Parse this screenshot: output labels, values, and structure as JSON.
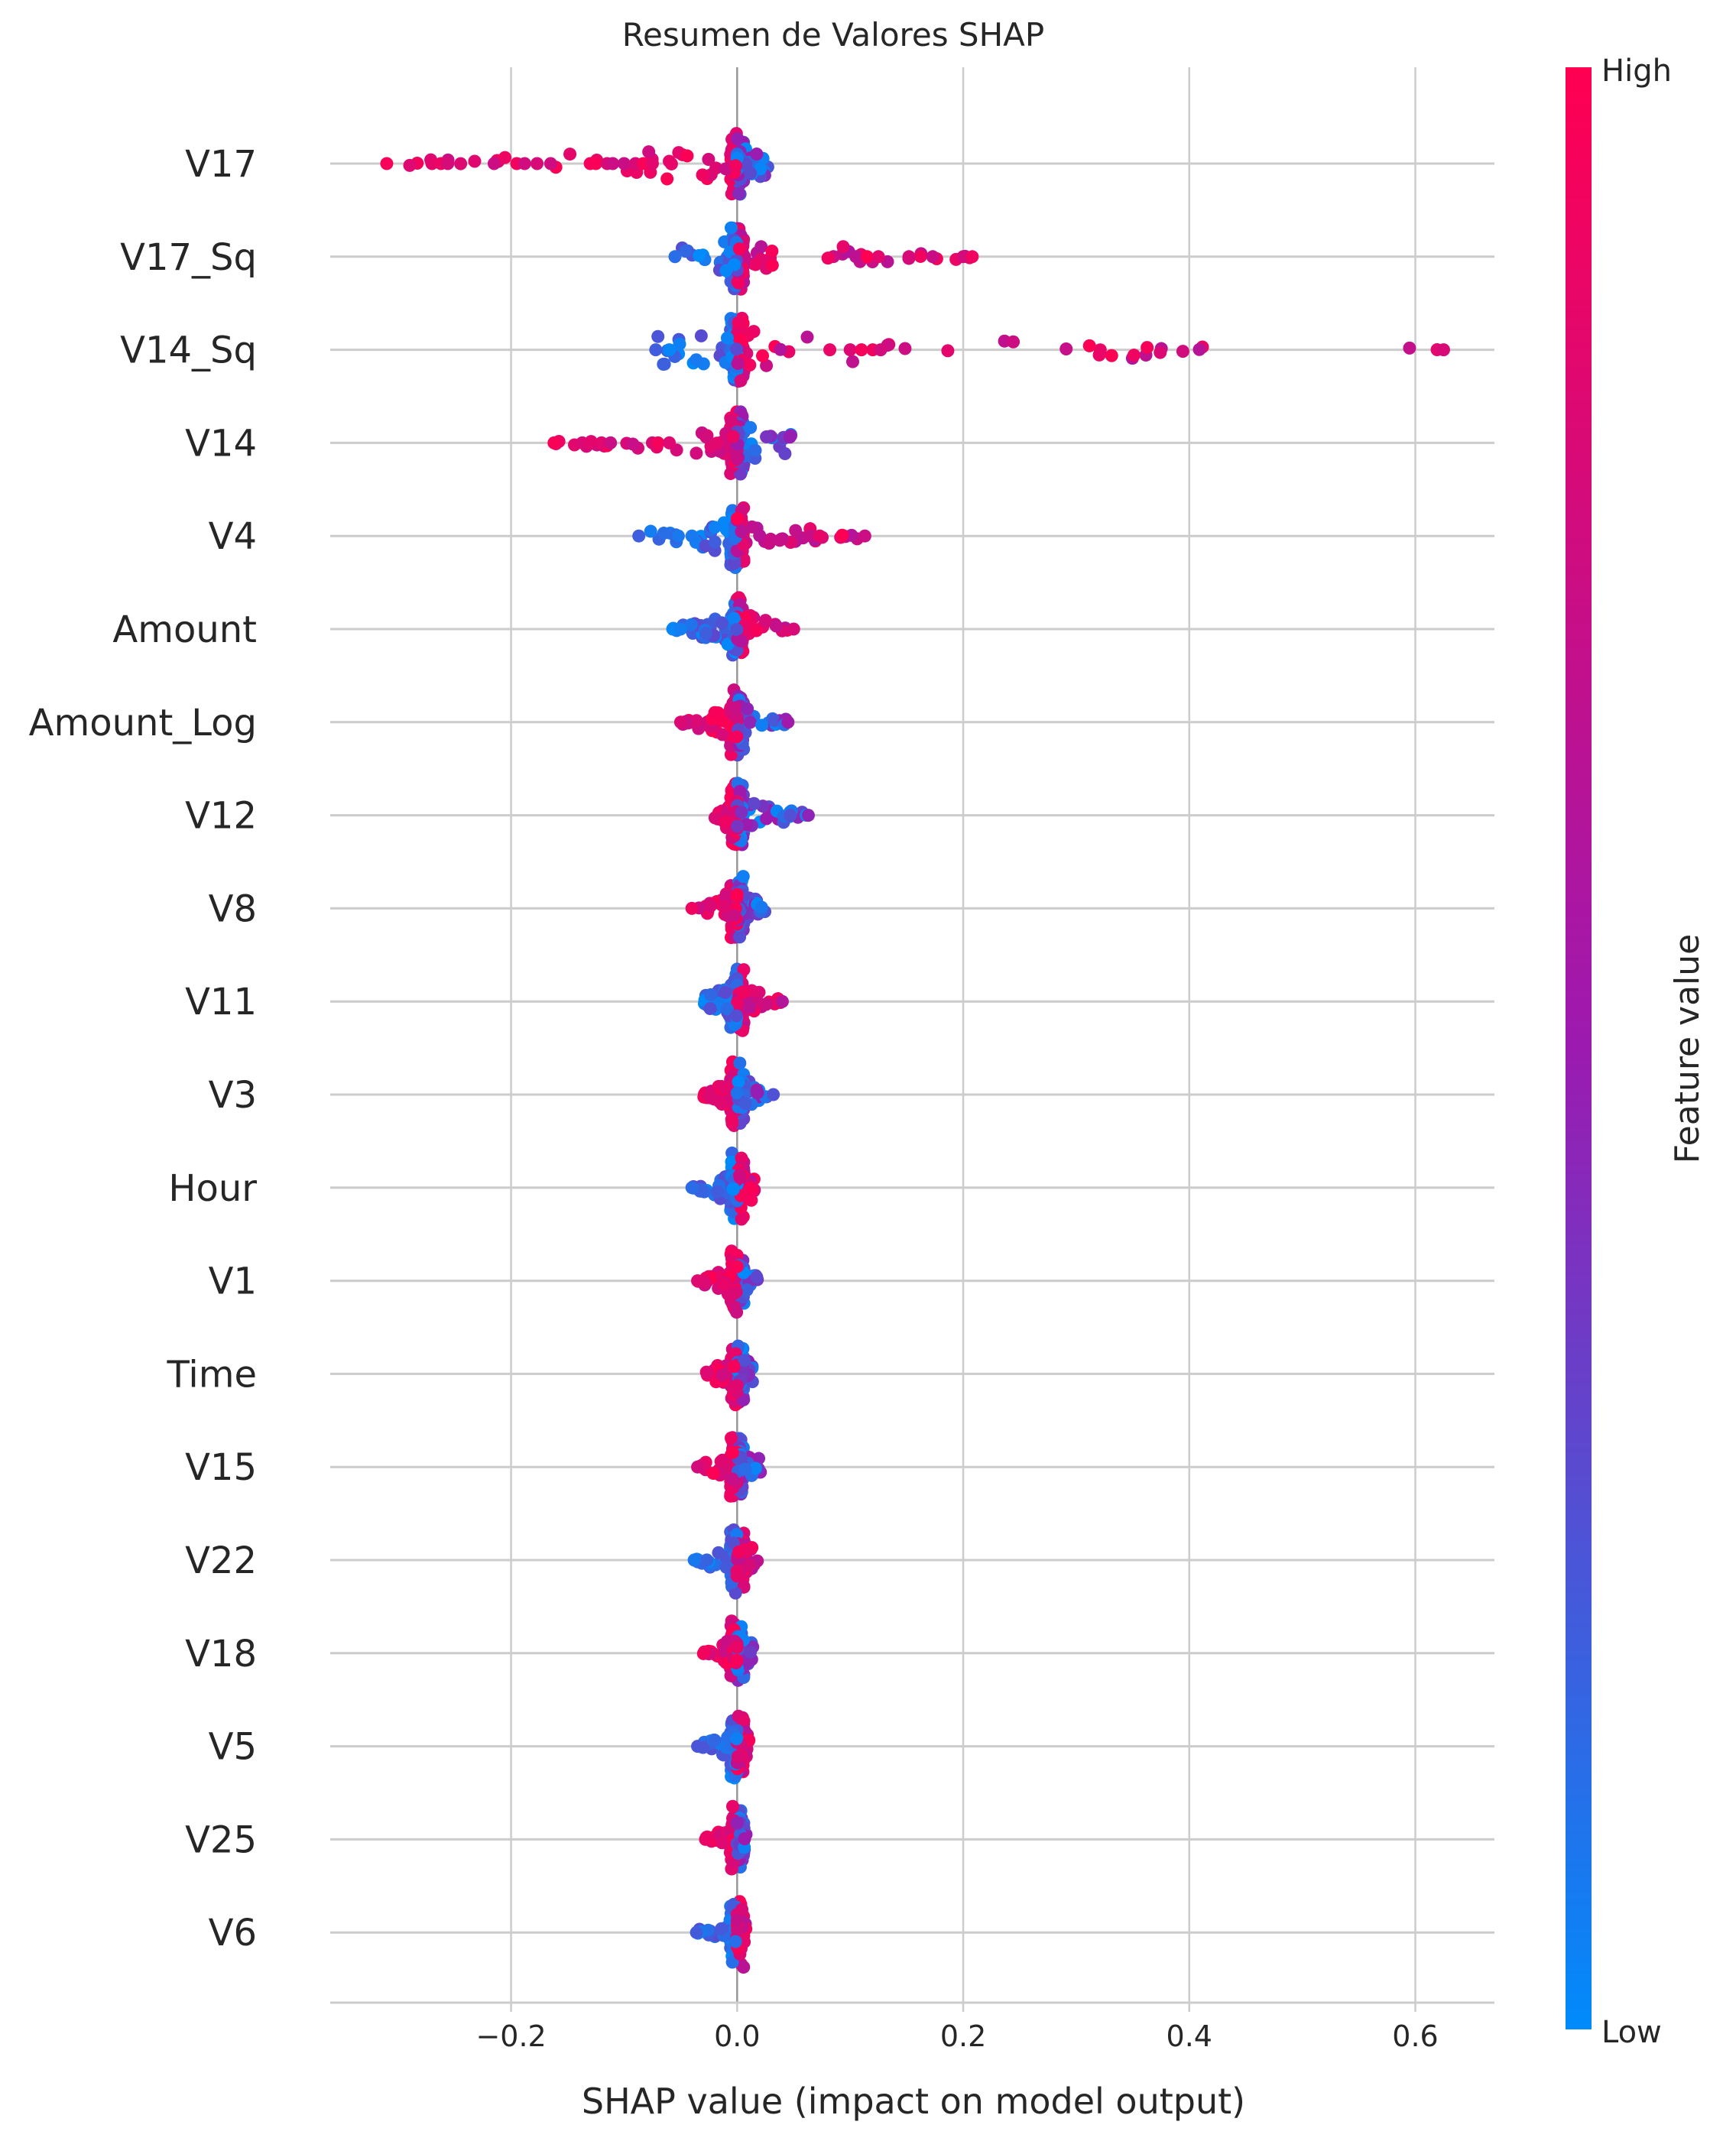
{
  "chart_data": {
    "type": "scatter",
    "variant": "shap-beeswarm",
    "title": "Resumen de Valores SHAP",
    "xlabel": "SHAP value (impact on model output)",
    "xlim": [
      -0.36,
      0.67
    ],
    "xticks": [
      -0.2,
      0.0,
      0.2,
      0.4,
      0.6
    ],
    "xtick_labels": [
      "−0.2",
      "0.0",
      "0.2",
      "0.4",
      "0.6"
    ],
    "grid": "on",
    "colorbar": {
      "label": "Feature value",
      "high_label": "High",
      "low_label": "Low",
      "low_color": "#008bfb",
      "mid_color": "#9c1ab0",
      "high_color": "#ff0052"
    },
    "features": [
      {
        "name": "V17",
        "min": -0.31,
        "max": 0.03,
        "negative_color": "high",
        "outliers": [
          -0.31,
          -0.27,
          -0.262,
          -0.256,
          -0.215,
          -0.195,
          -0.188,
          -0.177,
          -0.165,
          -0.13,
          -0.125,
          -0.115,
          -0.11,
          -0.1,
          -0.09,
          -0.083,
          -0.075
        ]
      },
      {
        "name": "V17_Sq",
        "min": -0.055,
        "max": 0.208,
        "negative_color": "low",
        "outliers": [
          -0.055,
          0.105,
          0.115,
          0.125,
          0.152,
          0.173,
          0.2,
          0.208
        ]
      },
      {
        "name": "V14_Sq",
        "min": -0.072,
        "max": 0.625,
        "negative_color": "low",
        "outliers": [
          -0.072,
          -0.06,
          0.082,
          0.1,
          0.11,
          0.12,
          0.127,
          0.625
        ]
      },
      {
        "name": "V14",
        "min": -0.162,
        "max": 0.05,
        "negative_color": "high",
        "outliers": [
          -0.162,
          -0.137,
          -0.13,
          -0.12,
          -0.112,
          -0.075,
          -0.07,
          -0.06
        ]
      },
      {
        "name": "V4",
        "min": -0.087,
        "max": 0.113,
        "negative_color": "low",
        "outliers": [
          -0.087,
          -0.052,
          -0.04,
          0.065,
          0.073,
          0.113
        ]
      },
      {
        "name": "Amount",
        "min": -0.057,
        "max": 0.05,
        "negative_color": "low",
        "outliers": [
          -0.057,
          -0.05,
          0.05
        ]
      },
      {
        "name": "Amount_Log",
        "min": -0.05,
        "max": 0.045,
        "negative_color": "high",
        "outliers": [
          -0.05,
          0.045
        ]
      },
      {
        "name": "V12",
        "min": -0.02,
        "max": 0.063,
        "negative_color": "high",
        "outliers": [
          0.047,
          0.063
        ]
      },
      {
        "name": "V8",
        "min": -0.04,
        "max": 0.025,
        "negative_color": "high",
        "outliers": [
          -0.04
        ]
      },
      {
        "name": "V11",
        "min": -0.03,
        "max": 0.04,
        "negative_color": "low",
        "outliers": [
          0.04
        ]
      },
      {
        "name": "V3",
        "min": -0.03,
        "max": 0.032,
        "negative_color": "high",
        "outliers": [
          0.032
        ]
      },
      {
        "name": "Hour",
        "min": -0.04,
        "max": 0.016,
        "negative_color": "low",
        "outliers": [
          -0.04
        ]
      },
      {
        "name": "V1",
        "min": -0.035,
        "max": 0.02,
        "negative_color": "high",
        "outliers": [
          -0.035
        ]
      },
      {
        "name": "Time",
        "min": -0.028,
        "max": 0.015,
        "negative_color": "high",
        "outliers": []
      },
      {
        "name": "V15",
        "min": -0.035,
        "max": 0.022,
        "negative_color": "high",
        "outliers": [
          -0.035
        ]
      },
      {
        "name": "V22",
        "min": -0.038,
        "max": 0.018,
        "negative_color": "low",
        "outliers": [
          -0.038
        ]
      },
      {
        "name": "V18",
        "min": -0.03,
        "max": 0.015,
        "negative_color": "high",
        "outliers": []
      },
      {
        "name": "V5",
        "min": -0.035,
        "max": 0.012,
        "negative_color": "low",
        "outliers": [
          -0.035
        ]
      },
      {
        "name": "V25",
        "min": -0.028,
        "max": 0.008,
        "negative_color": "high",
        "outliers": [
          -0.028
        ]
      },
      {
        "name": "V6",
        "min": -0.036,
        "max": 0.008,
        "negative_color": "low",
        "outliers": [
          -0.036
        ]
      }
    ]
  }
}
